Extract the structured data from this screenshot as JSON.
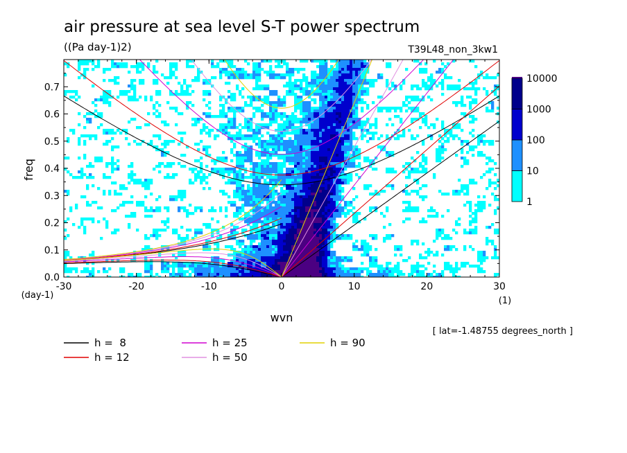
{
  "chart_data": {
    "type": "heatmap",
    "title": "air pressure at sea level S-T power spectrum",
    "subtitle": "((Pa day-1)2)",
    "run_label": "T39L48_non_3kw1",
    "xlabel": "wvn",
    "ylabel": "freq",
    "x_unit": "(1)",
    "y_unit": "(day-1)",
    "xlim": [
      -30,
      30
    ],
    "ylim": [
      0,
      0.8
    ],
    "x_ticks": [
      "-30",
      "-20",
      "-10",
      "0",
      "10",
      "20",
      "30"
    ],
    "y_ticks": [
      "0.0",
      "0.1",
      "0.2",
      "0.3",
      "0.4",
      "0.5",
      "0.6",
      "0.7"
    ],
    "colorbar": {
      "levels": [
        "1",
        "10",
        "100",
        "1000",
        "10000"
      ],
      "colors": [
        "#00ffff",
        "#1e90ff",
        "#0000cd",
        "#00008b",
        "#4b0082"
      ]
    },
    "dispersion_curves": [
      {
        "label": "h =  8",
        "h": 8,
        "color": "#000000"
      },
      {
        "label": "h = 12",
        "h": 12,
        "color": "#e00000"
      },
      {
        "label": "h = 25",
        "h": 25,
        "color": "#d000d0"
      },
      {
        "label": "h = 50",
        "h": 50,
        "color": "#e090e0"
      },
      {
        "label": "h = 90",
        "h": 90,
        "color": "#e0d000"
      }
    ],
    "annotation": "[ lat=-1.48755 degrees_north ]"
  }
}
